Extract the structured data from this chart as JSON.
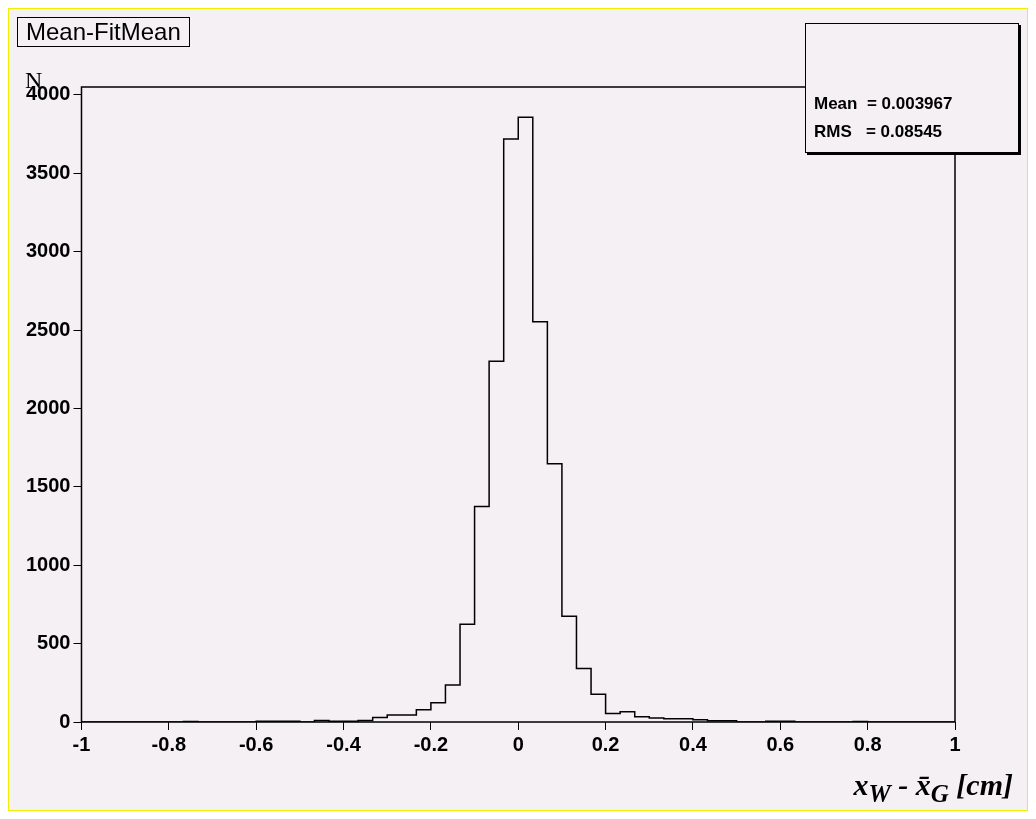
{
  "chart_data": {
    "type": "histogram",
    "title": "Mean-FitMean",
    "xlabel": "x$_{W}$ - x̄$_{G}$ [cm]",
    "ylabel": "N",
    "annotations": [
      "Mean  = 0.003967",
      "RMS   = 0.08545"
    ],
    "bins": [
      -1,
      -0.9667,
      -0.9333,
      -0.9,
      -0.8667,
      -0.8333,
      -0.8,
      -0.7667,
      -0.7333,
      -0.7,
      -0.6667,
      -0.6333,
      -0.6,
      -0.5667,
      -0.5333,
      -0.5,
      -0.4667,
      -0.4333,
      -0.4,
      -0.3667,
      -0.3333,
      -0.3,
      -0.2667,
      -0.2333,
      -0.2,
      -0.1667,
      -0.1333,
      -0.1,
      -0.0667,
      -0.0333,
      0,
      0.0333,
      0.0667,
      0.1,
      0.1333,
      0.1667,
      0.2,
      0.2333,
      0.2667,
      0.3,
      0.3333,
      0.3667,
      0.4,
      0.4333,
      0.4667,
      0.5,
      0.5333,
      0.5667,
      0.6,
      0.6333,
      0.6667,
      0.7,
      0.7333,
      0.7667,
      0.8,
      0.8333,
      0.8667,
      0.9,
      0.9333,
      0.9667,
      1
    ],
    "values": [
      0,
      0,
      0,
      0,
      0,
      0,
      0,
      3,
      0,
      0,
      0,
      0,
      4,
      4,
      4,
      0,
      10,
      5,
      5,
      10,
      29,
      45,
      45,
      78,
      122,
      236,
      624,
      1375,
      2301,
      3719,
      3857,
      2552,
      1647,
      675,
      341,
      177,
      54,
      65,
      34,
      25,
      20,
      20,
      15,
      8,
      8,
      0,
      0,
      5,
      5,
      0,
      0,
      0,
      0,
      3,
      0,
      0,
      0,
      0,
      0,
      0
    ],
    "color": "#000000",
    "xlim": [
      -1,
      1
    ],
    "ylim": [
      0,
      4050
    ],
    "xticks": [
      -1,
      -0.8,
      -0.6,
      -0.4,
      -0.2,
      0,
      0.2,
      0.4,
      0.6,
      0.8,
      1
    ],
    "yticks": [
      0,
      500,
      1000,
      1500,
      2000,
      2500,
      3000,
      3500,
      4000
    ],
    "grid": false
  }
}
